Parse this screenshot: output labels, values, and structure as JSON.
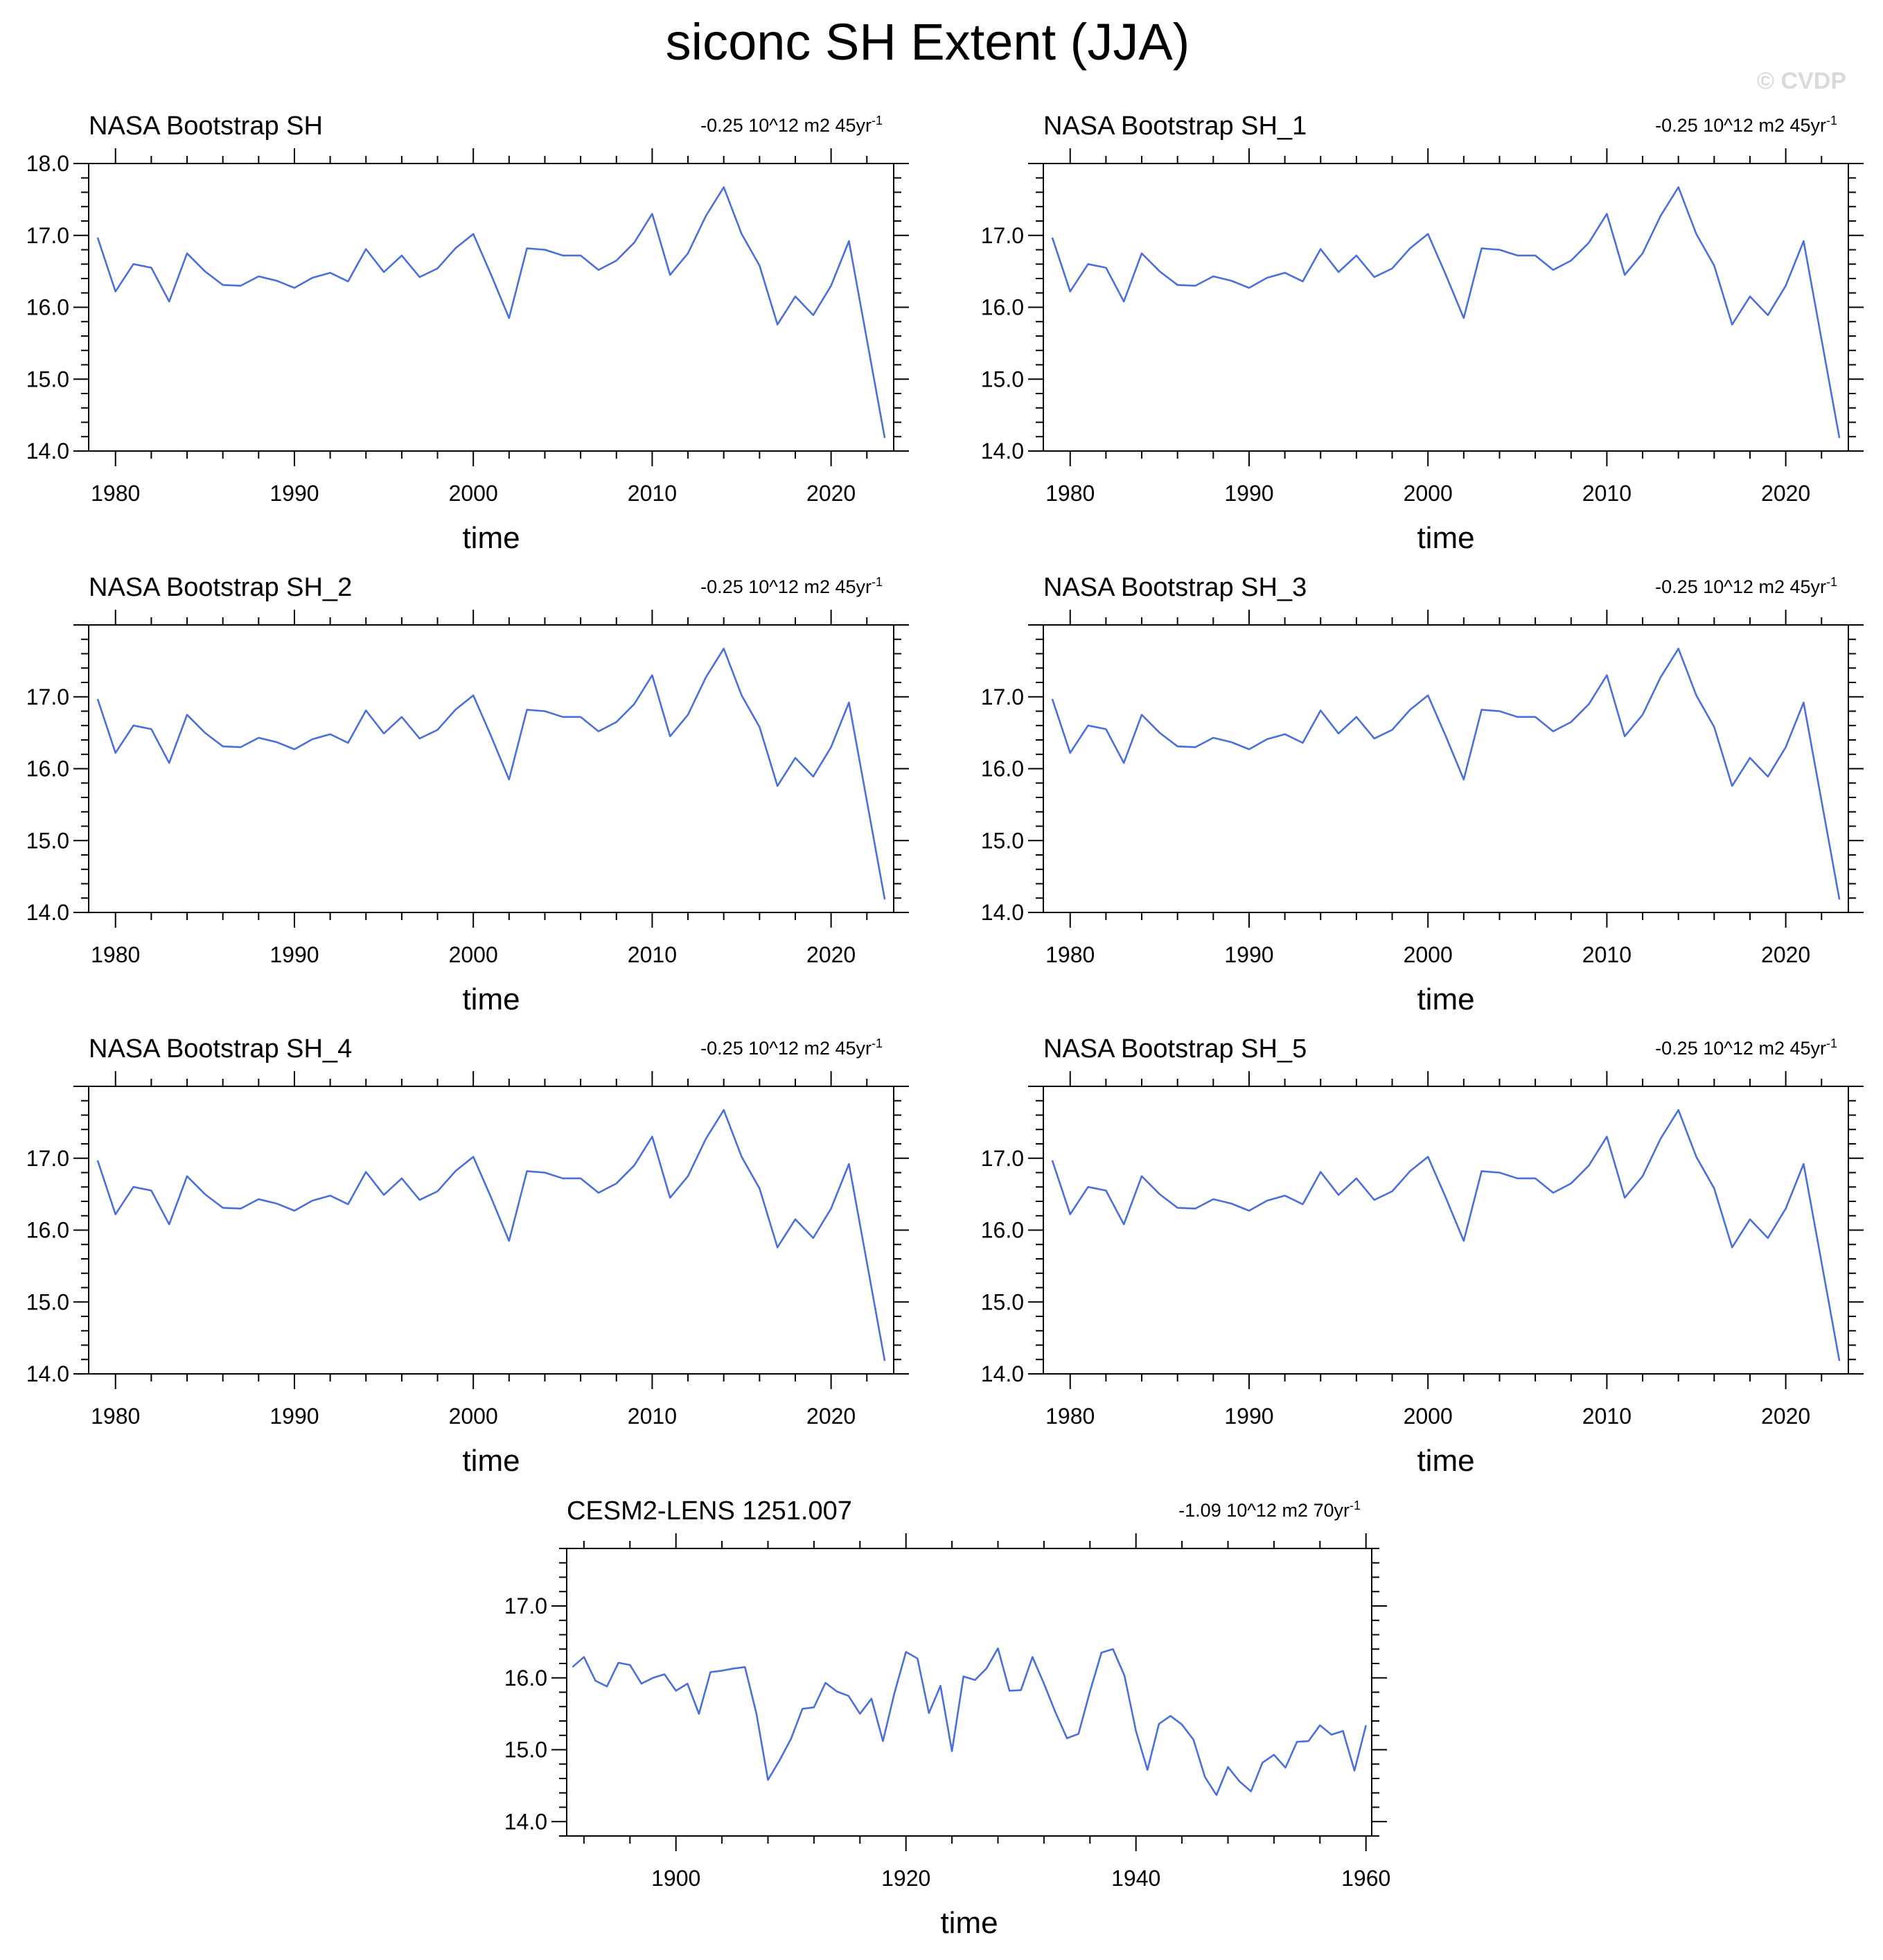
{
  "figure": {
    "title": "siconc SH Extent (JJA)",
    "watermark": "© CVDP"
  },
  "colors": {
    "line": "#4a6fdc",
    "axis": "#000000",
    "watermark": "#d9d9d9"
  },
  "chart_data": [
    {
      "type": "line",
      "title": "NASA Bootstrap SH",
      "trend": "-0.25 10^12 m2 45yr",
      "trend_exponent": "-1",
      "xlabel": "time",
      "ylabel": "",
      "xlim": [
        1978.5,
        2023.5
      ],
      "ylim": [
        14.0,
        18.0
      ],
      "xticks": [
        1980,
        1990,
        2000,
        2010,
        2020
      ],
      "yticks": [
        14.0,
        15.0,
        16.0,
        17.0,
        18.0
      ],
      "ytick_labels": [
        "14.0",
        "15.0",
        "16.0",
        "17.0",
        "18.0"
      ],
      "x": [
        1979,
        1980,
        1981,
        1982,
        1983,
        1984,
        1985,
        1986,
        1987,
        1988,
        1989,
        1990,
        1991,
        1992,
        1993,
        1994,
        1995,
        1996,
        1997,
        1998,
        1999,
        2000,
        2001,
        2002,
        2003,
        2004,
        2005,
        2006,
        2007,
        2008,
        2009,
        2010,
        2011,
        2012,
        2013,
        2014,
        2015,
        2016,
        2017,
        2018,
        2019,
        2020,
        2021,
        2022,
        2023
      ],
      "values": [
        16.97,
        16.22,
        16.6,
        16.55,
        16.08,
        16.75,
        16.5,
        16.31,
        16.3,
        16.43,
        16.37,
        16.27,
        16.41,
        16.48,
        16.36,
        16.81,
        16.49,
        16.72,
        16.42,
        16.54,
        16.82,
        17.02,
        16.45,
        15.85,
        16.82,
        16.8,
        16.72,
        16.72,
        16.52,
        16.65,
        16.9,
        17.3,
        16.45,
        16.75,
        17.27,
        17.67,
        17.02,
        16.58,
        15.76,
        16.15,
        15.89,
        16.3,
        16.92,
        15.55,
        14.18
      ]
    },
    {
      "type": "line",
      "title": "NASA Bootstrap SH_1",
      "trend": "-0.25 10^12 m2 45yr",
      "trend_exponent": "-1",
      "xlabel": "time",
      "ylabel": "",
      "xlim": [
        1978.5,
        2023.5
      ],
      "ylim": [
        14.0,
        18.0
      ],
      "xticks": [
        1980,
        1990,
        2000,
        2010,
        2020
      ],
      "yticks": [
        14.0,
        15.0,
        16.0,
        17.0
      ],
      "ytick_labels": [
        "14.0",
        "15.0",
        "16.0",
        "17.0"
      ],
      "x": [
        1979,
        1980,
        1981,
        1982,
        1983,
        1984,
        1985,
        1986,
        1987,
        1988,
        1989,
        1990,
        1991,
        1992,
        1993,
        1994,
        1995,
        1996,
        1997,
        1998,
        1999,
        2000,
        2001,
        2002,
        2003,
        2004,
        2005,
        2006,
        2007,
        2008,
        2009,
        2010,
        2011,
        2012,
        2013,
        2014,
        2015,
        2016,
        2017,
        2018,
        2019,
        2020,
        2021,
        2022,
        2023
      ],
      "values": [
        16.97,
        16.22,
        16.6,
        16.55,
        16.08,
        16.75,
        16.5,
        16.31,
        16.3,
        16.43,
        16.37,
        16.27,
        16.41,
        16.48,
        16.36,
        16.81,
        16.49,
        16.72,
        16.42,
        16.54,
        16.82,
        17.02,
        16.45,
        15.85,
        16.82,
        16.8,
        16.72,
        16.72,
        16.52,
        16.65,
        16.9,
        17.3,
        16.45,
        16.75,
        17.27,
        17.67,
        17.02,
        16.58,
        15.76,
        16.15,
        15.89,
        16.3,
        16.92,
        15.55,
        14.18
      ]
    },
    {
      "type": "line",
      "title": "NASA Bootstrap SH_2",
      "trend": "-0.25 10^12 m2 45yr",
      "trend_exponent": "-1",
      "xlabel": "time",
      "ylabel": "",
      "xlim": [
        1978.5,
        2023.5
      ],
      "ylim": [
        14.0,
        18.0
      ],
      "xticks": [
        1980,
        1990,
        2000,
        2010,
        2020
      ],
      "yticks": [
        14.0,
        15.0,
        16.0,
        17.0
      ],
      "ytick_labels": [
        "14.0",
        "15.0",
        "16.0",
        "17.0"
      ],
      "x": [
        1979,
        1980,
        1981,
        1982,
        1983,
        1984,
        1985,
        1986,
        1987,
        1988,
        1989,
        1990,
        1991,
        1992,
        1993,
        1994,
        1995,
        1996,
        1997,
        1998,
        1999,
        2000,
        2001,
        2002,
        2003,
        2004,
        2005,
        2006,
        2007,
        2008,
        2009,
        2010,
        2011,
        2012,
        2013,
        2014,
        2015,
        2016,
        2017,
        2018,
        2019,
        2020,
        2021,
        2022,
        2023
      ],
      "values": [
        16.97,
        16.22,
        16.6,
        16.55,
        16.08,
        16.75,
        16.5,
        16.31,
        16.3,
        16.43,
        16.37,
        16.27,
        16.41,
        16.48,
        16.36,
        16.81,
        16.49,
        16.72,
        16.42,
        16.54,
        16.82,
        17.02,
        16.45,
        15.85,
        16.82,
        16.8,
        16.72,
        16.72,
        16.52,
        16.65,
        16.9,
        17.3,
        16.45,
        16.75,
        17.27,
        17.67,
        17.02,
        16.58,
        15.76,
        16.15,
        15.89,
        16.3,
        16.92,
        15.55,
        14.18
      ]
    },
    {
      "type": "line",
      "title": "NASA Bootstrap SH_3",
      "trend": "-0.25 10^12 m2 45yr",
      "trend_exponent": "-1",
      "xlabel": "time",
      "ylabel": "",
      "xlim": [
        1978.5,
        2023.5
      ],
      "ylim": [
        14.0,
        18.0
      ],
      "xticks": [
        1980,
        1990,
        2000,
        2010,
        2020
      ],
      "yticks": [
        14.0,
        15.0,
        16.0,
        17.0
      ],
      "ytick_labels": [
        "14.0",
        "15.0",
        "16.0",
        "17.0"
      ],
      "x": [
        1979,
        1980,
        1981,
        1982,
        1983,
        1984,
        1985,
        1986,
        1987,
        1988,
        1989,
        1990,
        1991,
        1992,
        1993,
        1994,
        1995,
        1996,
        1997,
        1998,
        1999,
        2000,
        2001,
        2002,
        2003,
        2004,
        2005,
        2006,
        2007,
        2008,
        2009,
        2010,
        2011,
        2012,
        2013,
        2014,
        2015,
        2016,
        2017,
        2018,
        2019,
        2020,
        2021,
        2022,
        2023
      ],
      "values": [
        16.97,
        16.22,
        16.6,
        16.55,
        16.08,
        16.75,
        16.5,
        16.31,
        16.3,
        16.43,
        16.37,
        16.27,
        16.41,
        16.48,
        16.36,
        16.81,
        16.49,
        16.72,
        16.42,
        16.54,
        16.82,
        17.02,
        16.45,
        15.85,
        16.82,
        16.8,
        16.72,
        16.72,
        16.52,
        16.65,
        16.9,
        17.3,
        16.45,
        16.75,
        17.27,
        17.67,
        17.02,
        16.58,
        15.76,
        16.15,
        15.89,
        16.3,
        16.92,
        15.55,
        14.18
      ]
    },
    {
      "type": "line",
      "title": "NASA Bootstrap SH_4",
      "trend": "-0.25 10^12 m2 45yr",
      "trend_exponent": "-1",
      "xlabel": "time",
      "ylabel": "",
      "xlim": [
        1978.5,
        2023.5
      ],
      "ylim": [
        14.0,
        18.0
      ],
      "xticks": [
        1980,
        1990,
        2000,
        2010,
        2020
      ],
      "yticks": [
        14.0,
        15.0,
        16.0,
        17.0
      ],
      "ytick_labels": [
        "14.0",
        "15.0",
        "16.0",
        "17.0"
      ],
      "x": [
        1979,
        1980,
        1981,
        1982,
        1983,
        1984,
        1985,
        1986,
        1987,
        1988,
        1989,
        1990,
        1991,
        1992,
        1993,
        1994,
        1995,
        1996,
        1997,
        1998,
        1999,
        2000,
        2001,
        2002,
        2003,
        2004,
        2005,
        2006,
        2007,
        2008,
        2009,
        2010,
        2011,
        2012,
        2013,
        2014,
        2015,
        2016,
        2017,
        2018,
        2019,
        2020,
        2021,
        2022,
        2023
      ],
      "values": [
        16.97,
        16.22,
        16.6,
        16.55,
        16.08,
        16.75,
        16.5,
        16.31,
        16.3,
        16.43,
        16.37,
        16.27,
        16.41,
        16.48,
        16.36,
        16.81,
        16.49,
        16.72,
        16.42,
        16.54,
        16.82,
        17.02,
        16.45,
        15.85,
        16.82,
        16.8,
        16.72,
        16.72,
        16.52,
        16.65,
        16.9,
        17.3,
        16.45,
        16.75,
        17.27,
        17.67,
        17.02,
        16.58,
        15.76,
        16.15,
        15.89,
        16.3,
        16.92,
        15.55,
        14.18
      ]
    },
    {
      "type": "line",
      "title": "NASA Bootstrap SH_5",
      "trend": "-0.25 10^12 m2 45yr",
      "trend_exponent": "-1",
      "xlabel": "time",
      "ylabel": "",
      "xlim": [
        1978.5,
        2023.5
      ],
      "ylim": [
        14.0,
        18.0
      ],
      "xticks": [
        1980,
        1990,
        2000,
        2010,
        2020
      ],
      "yticks": [
        14.0,
        15.0,
        16.0,
        17.0
      ],
      "ytick_labels": [
        "14.0",
        "15.0",
        "16.0",
        "17.0"
      ],
      "x": [
        1979,
        1980,
        1981,
        1982,
        1983,
        1984,
        1985,
        1986,
        1987,
        1988,
        1989,
        1990,
        1991,
        1992,
        1993,
        1994,
        1995,
        1996,
        1997,
        1998,
        1999,
        2000,
        2001,
        2002,
        2003,
        2004,
        2005,
        2006,
        2007,
        2008,
        2009,
        2010,
        2011,
        2012,
        2013,
        2014,
        2015,
        2016,
        2017,
        2018,
        2019,
        2020,
        2021,
        2022,
        2023
      ],
      "values": [
        16.97,
        16.22,
        16.6,
        16.55,
        16.08,
        16.75,
        16.5,
        16.31,
        16.3,
        16.43,
        16.37,
        16.27,
        16.41,
        16.48,
        16.36,
        16.81,
        16.49,
        16.72,
        16.42,
        16.54,
        16.82,
        17.02,
        16.45,
        15.85,
        16.82,
        16.8,
        16.72,
        16.72,
        16.52,
        16.65,
        16.9,
        17.3,
        16.45,
        16.75,
        17.27,
        17.67,
        17.02,
        16.58,
        15.76,
        16.15,
        15.89,
        16.3,
        16.92,
        15.55,
        14.18
      ]
    },
    {
      "type": "line",
      "title": "CESM2-LENS 1251.007",
      "trend": "-1.09 10^12 m2 70yr",
      "trend_exponent": "-1",
      "xlabel": "time",
      "ylabel": "",
      "xlim": [
        1890.5,
        1960.5
      ],
      "ylim": [
        13.8,
        17.8
      ],
      "xticks": [
        1900,
        1920,
        1940,
        1960
      ],
      "yticks": [
        14.0,
        15.0,
        16.0,
        17.0
      ],
      "ytick_labels": [
        "14.0",
        "15.0",
        "16.0",
        "17.0"
      ],
      "x": [
        1891,
        1892,
        1893,
        1894,
        1895,
        1896,
        1897,
        1898,
        1899,
        1900,
        1901,
        1902,
        1903,
        1904,
        1905,
        1906,
        1907,
        1908,
        1909,
        1910,
        1911,
        1912,
        1913,
        1914,
        1915,
        1916,
        1917,
        1918,
        1919,
        1920,
        1921,
        1922,
        1923,
        1924,
        1925,
        1926,
        1927,
        1928,
        1929,
        1930,
        1931,
        1932,
        1933,
        1934,
        1935,
        1936,
        1937,
        1938,
        1939,
        1940,
        1941,
        1942,
        1943,
        1944,
        1945,
        1946,
        1947,
        1948,
        1949,
        1950,
        1951,
        1952,
        1953,
        1954,
        1955,
        1956,
        1957,
        1958,
        1959,
        1960
      ],
      "values": [
        16.15,
        16.29,
        15.96,
        15.88,
        16.21,
        16.18,
        15.92,
        16.0,
        16.05,
        15.82,
        15.92,
        15.5,
        16.08,
        16.1,
        16.13,
        16.15,
        15.5,
        14.58,
        14.85,
        15.15,
        15.57,
        15.59,
        15.93,
        15.81,
        15.75,
        15.5,
        15.71,
        15.12,
        15.79,
        16.36,
        16.27,
        15.51,
        15.89,
        14.98,
        16.02,
        15.97,
        16.13,
        16.41,
        15.82,
        15.83,
        16.29,
        15.92,
        15.52,
        15.16,
        15.22,
        15.81,
        16.35,
        16.4,
        16.03,
        15.26,
        14.72,
        15.36,
        15.47,
        15.35,
        15.14,
        14.62,
        14.37,
        14.76,
        14.56,
        14.42,
        14.82,
        14.93,
        14.75,
        15.11,
        15.12,
        15.34,
        15.21,
        15.26,
        14.71,
        15.34
      ]
    }
  ]
}
